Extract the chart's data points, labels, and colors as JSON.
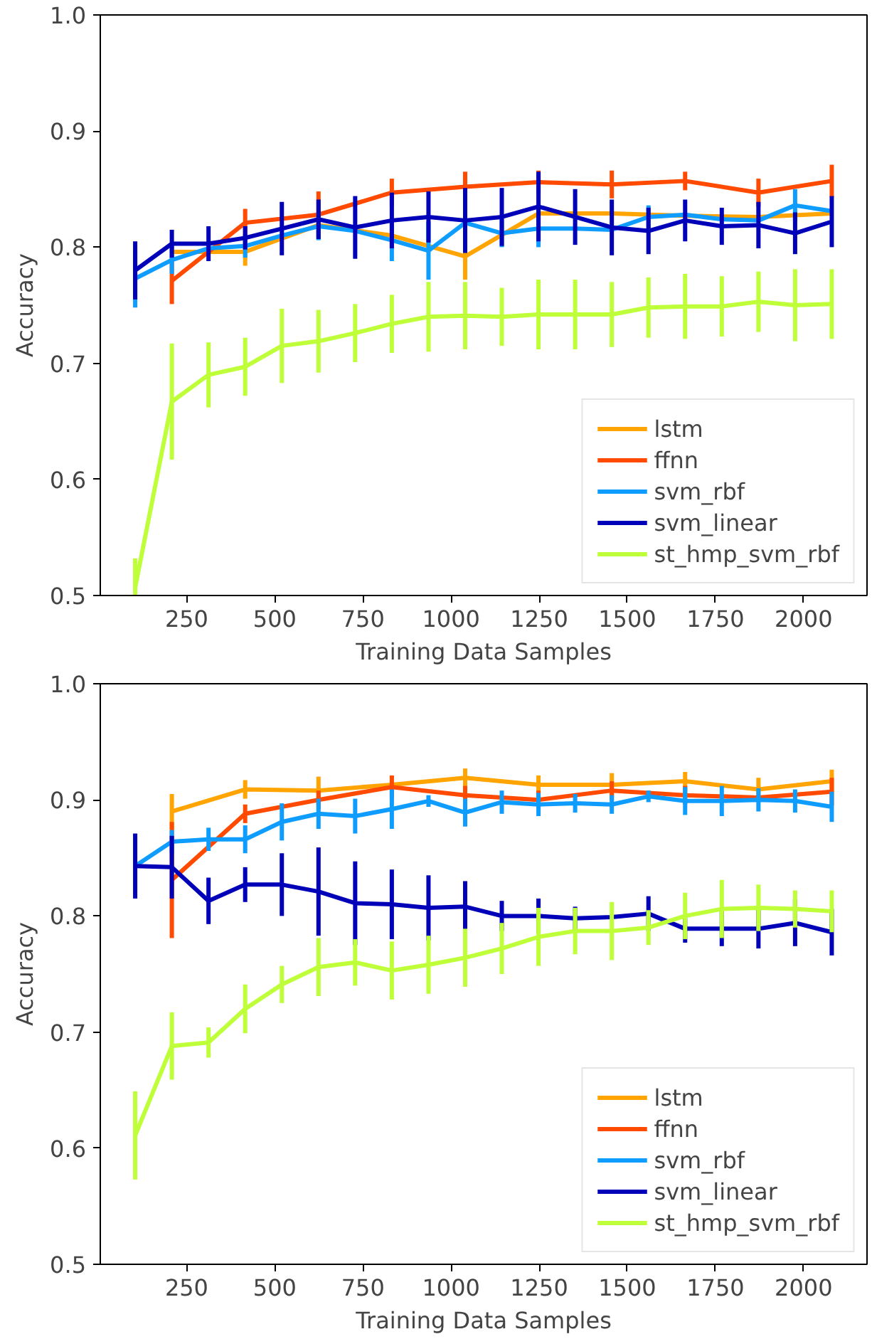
{
  "chart_data": [
    {
      "type": "line",
      "xlabel": "Training Data Samples",
      "ylabel": "Accuracy",
      "legend": "bottom right",
      "grid": false,
      "marker": "none",
      "line_style": "solid",
      "x": [
        104,
        208,
        312,
        416,
        520,
        624,
        728,
        832,
        936,
        1040,
        1144,
        1248,
        1352,
        1456,
        1560,
        1664,
        1768,
        1872,
        1976,
        2080
      ],
      "xlim": [
        5,
        2180
      ],
      "ylim": [
        0.5,
        1.0
      ],
      "xticks": [
        250,
        500,
        750,
        1000,
        1250,
        1500,
        1750,
        2000
      ],
      "yticks": [
        {
          "value": 0.5,
          "label": "0.5"
        },
        {
          "value": 0.6,
          "label": "0.6"
        },
        {
          "value": 0.7,
          "label": "0.7"
        },
        {
          "value": 0.8,
          "label": "0.8"
        },
        {
          "value": 0.9,
          "label": "0.9"
        },
        {
          "value": 1.0,
          "label": "1.0"
        }
      ],
      "series": [
        {
          "name": "lstm",
          "color": "#ffa400",
          "x": [
            208,
            416,
            624,
            832,
            1040,
            1248,
            1456,
            1664,
            1872,
            2080
          ],
          "values": [
            0.796,
            0.796,
            0.819,
            0.81,
            0.792,
            0.829,
            0.829,
            0.827,
            0.826,
            0.829
          ],
          "errors": [
            null,
            0.012,
            null,
            null,
            0.02,
            null,
            null,
            null,
            null,
            null
          ]
        },
        {
          "name": "ffnn",
          "color": "#ff4a00",
          "x": [
            208,
            416,
            624,
            832,
            1040,
            1248,
            1456,
            1664,
            1872,
            2080
          ],
          "values": [
            0.771,
            0.821,
            0.828,
            0.847,
            0.852,
            0.856,
            0.854,
            0.857,
            0.847,
            0.857
          ],
          "errors": [
            0.02,
            0.012,
            0.02,
            0.012,
            0.013,
            0.01,
            0.012,
            0.008,
            0.012,
            0.014
          ]
        },
        {
          "name": "svm_rbf",
          "color": "#0f9cff",
          "values": [
            0.773,
            0.789,
            0.799,
            0.801,
            0.81,
            0.818,
            0.814,
            0.806,
            0.797,
            0.821,
            0.812,
            0.816,
            0.816,
            0.815,
            0.826,
            0.828,
            0.824,
            0.823,
            0.836,
            0.831
          ],
          "errors": [
            0.025,
            0.012,
            null,
            0.01,
            null,
            0.012,
            null,
            0.018,
            0.025,
            null,
            0.012,
            0.016,
            null,
            null,
            0.01,
            null,
            null,
            null,
            0.014,
            null
          ]
        },
        {
          "name": "svm_linear",
          "color": "#0000b8",
          "values": [
            0.78,
            0.803,
            0.803,
            0.808,
            0.816,
            0.824,
            0.817,
            0.823,
            0.826,
            0.823,
            0.826,
            0.835,
            0.826,
            0.817,
            0.814,
            0.823,
            0.818,
            0.819,
            0.812,
            0.822
          ],
          "errors": [
            0.025,
            0.012,
            0.015,
            0.01,
            0.023,
            0.017,
            0.027,
            0.024,
            0.022,
            0.028,
            0.025,
            0.03,
            0.024,
            0.024,
            0.02,
            0.018,
            0.016,
            0.02,
            0.018,
            0.022
          ]
        },
        {
          "name": "st_hmp_svm_rbf",
          "color": "#beff39",
          "values": [
            0.507,
            0.667,
            0.69,
            0.697,
            0.715,
            0.719,
            0.726,
            0.734,
            0.74,
            0.741,
            0.74,
            0.742,
            0.742,
            0.742,
            0.748,
            0.749,
            0.749,
            0.753,
            0.75,
            0.751
          ],
          "errors": [
            0.025,
            0.05,
            0.028,
            0.025,
            0.032,
            0.027,
            0.025,
            0.025,
            0.03,
            0.029,
            0.025,
            0.03,
            0.03,
            0.028,
            0.026,
            0.028,
            0.026,
            0.026,
            0.031,
            0.03
          ]
        }
      ]
    },
    {
      "type": "line",
      "xlabel": "Training Data Samples",
      "ylabel": "Accuracy",
      "legend": "bottom right",
      "grid": false,
      "marker": "none",
      "line_style": "solid",
      "x": [
        104,
        208,
        312,
        416,
        520,
        624,
        728,
        832,
        936,
        1040,
        1144,
        1248,
        1352,
        1456,
        1560,
        1664,
        1768,
        1872,
        1976,
        2080
      ],
      "xlim": [
        5,
        2180
      ],
      "ylim": [
        0.5,
        1.0
      ],
      "xticks": [
        250,
        500,
        750,
        1000,
        1250,
        1500,
        1750,
        2000
      ],
      "yticks": [
        {
          "value": 0.5,
          "label": "0.5"
        },
        {
          "value": 0.6,
          "label": "0.6"
        },
        {
          "value": 0.7,
          "label": "0.7"
        },
        {
          "value": 0.8,
          "label": "0.8"
        },
        {
          "value": 0.9,
          "label": "0.9"
        },
        {
          "value": 1.0,
          "label": "1.0"
        }
      ],
      "series": [
        {
          "name": "lstm",
          "color": "#ffa400",
          "x": [
            208,
            416,
            624,
            832,
            1040,
            1248,
            1456,
            1664,
            1872,
            2080
          ],
          "values": [
            0.89,
            0.909,
            0.908,
            0.913,
            0.919,
            0.913,
            0.913,
            0.916,
            0.909,
            0.916
          ],
          "errors": [
            0.015,
            0.008,
            0.012,
            null,
            0.008,
            0.008,
            0.01,
            0.008,
            0.01,
            0.01
          ]
        },
        {
          "name": "ffnn",
          "color": "#ff4a00",
          "x": [
            208,
            416,
            624,
            832,
            1040,
            1248,
            1456,
            1664,
            1872,
            2080
          ],
          "values": [
            0.831,
            0.888,
            0.9,
            0.911,
            0.904,
            0.9,
            0.908,
            0.904,
            0.902,
            0.907
          ],
          "errors": [
            0.05,
            0.008,
            0.008,
            0.01,
            0.008,
            0.008,
            0.008,
            0.008,
            null,
            0.012
          ]
        },
        {
          "name": "svm_rbf",
          "color": "#0f9cff",
          "values": [
            0.843,
            0.864,
            0.866,
            0.866,
            0.881,
            0.888,
            0.886,
            0.892,
            0.899,
            0.889,
            0.898,
            0.896,
            0.897,
            0.896,
            0.903,
            0.899,
            0.899,
            0.9,
            0.899,
            0.894
          ],
          "errors": [
            null,
            0.01,
            0.01,
            0.012,
            0.016,
            0.013,
            0.015,
            0.017,
            0.005,
            0.012,
            0.01,
            0.01,
            0.008,
            0.008,
            0.005,
            0.012,
            0.013,
            0.01,
            0.01,
            0.013
          ]
        },
        {
          "name": "svm_linear",
          "color": "#0000b8",
          "values": [
            0.843,
            0.842,
            0.813,
            0.827,
            0.827,
            0.821,
            0.811,
            0.81,
            0.807,
            0.808,
            0.8,
            0.8,
            0.798,
            0.799,
            0.802,
            0.789,
            0.789,
            0.789,
            0.794,
            0.786
          ],
          "errors": [
            0.028,
            0.027,
            0.02,
            0.015,
            0.027,
            0.038,
            0.036,
            0.03,
            0.028,
            0.022,
            0.013,
            0.015,
            0.01,
            null,
            0.015,
            0.012,
            0.015,
            0.017,
            0.02,
            0.02
          ]
        },
        {
          "name": "st_hmp_svm_rbf",
          "color": "#beff39",
          "values": [
            0.611,
            0.688,
            0.691,
            0.72,
            0.741,
            0.756,
            0.76,
            0.753,
            0.758,
            0.764,
            0.772,
            0.782,
            0.787,
            0.787,
            0.79,
            0.8,
            0.806,
            0.807,
            0.806,
            0.804
          ],
          "errors": [
            0.038,
            0.029,
            0.013,
            0.021,
            0.016,
            0.025,
            0.02,
            0.025,
            0.025,
            0.025,
            0.022,
            0.025,
            0.02,
            0.025,
            0.015,
            0.02,
            0.025,
            0.02,
            0.016,
            0.018
          ]
        }
      ]
    }
  ]
}
